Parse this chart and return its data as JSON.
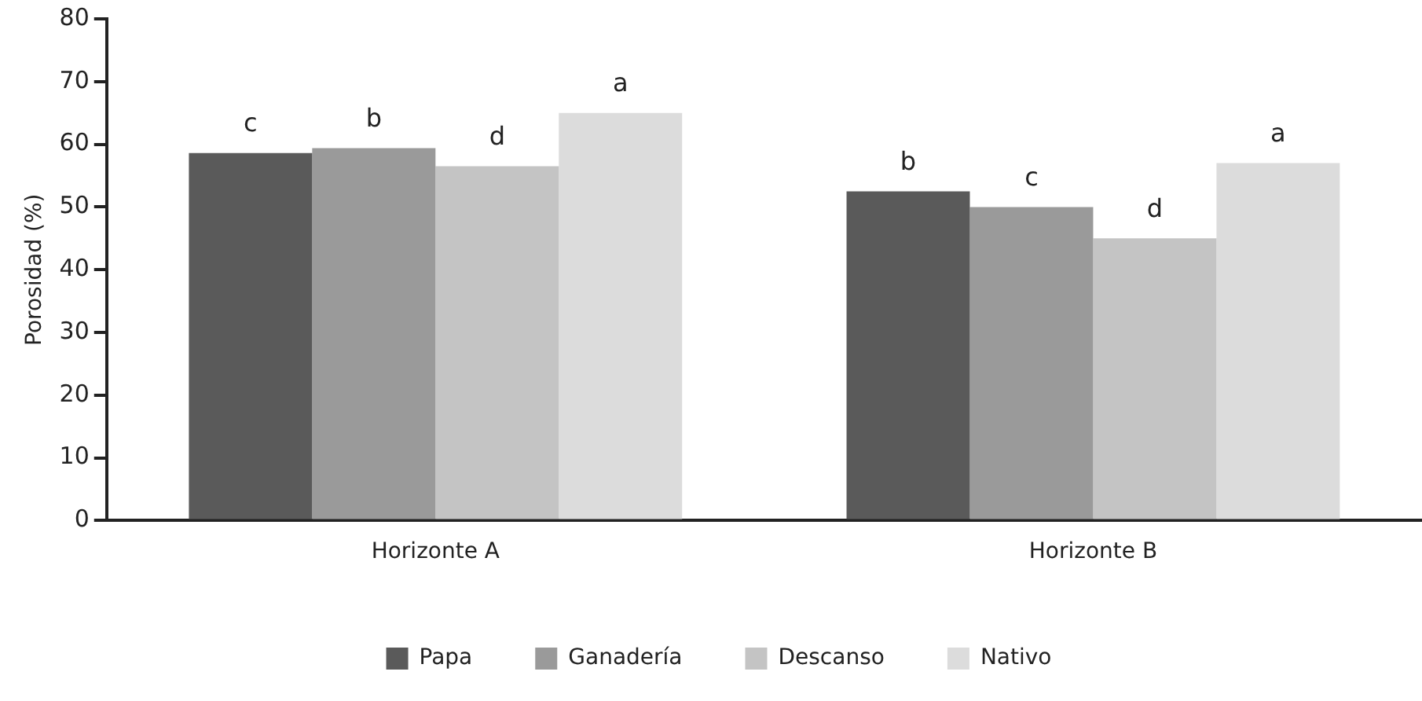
{
  "chart_data": {
    "type": "bar",
    "ylabel": "Porosidad (%)",
    "categories": [
      "Horizonte A",
      "Horizonte B"
    ],
    "series": [
      {
        "name": "Papa",
        "color": "#5a5a5a",
        "values": [
          58.6,
          52.5
        ],
        "value_labels": [
          "c",
          "b"
        ]
      },
      {
        "name": "Ganadería",
        "color": "#9a9a9a",
        "values": [
          59.4,
          50
        ],
        "value_labels": [
          "b",
          "c"
        ]
      },
      {
        "name": "Descanso",
        "color": "#c4c4c4",
        "values": [
          56.5,
          45
        ],
        "value_labels": [
          "d",
          "d"
        ]
      },
      {
        "name": "Nativo",
        "color": "#dcdcdc",
        "values": [
          65,
          57
        ],
        "value_labels": [
          "a",
          "a"
        ]
      }
    ],
    "ylim": [
      0,
      80
    ],
    "yticks": [
      0,
      10,
      20,
      30,
      40,
      50,
      60,
      70,
      80
    ],
    "grid": false,
    "legend": "bottom"
  }
}
